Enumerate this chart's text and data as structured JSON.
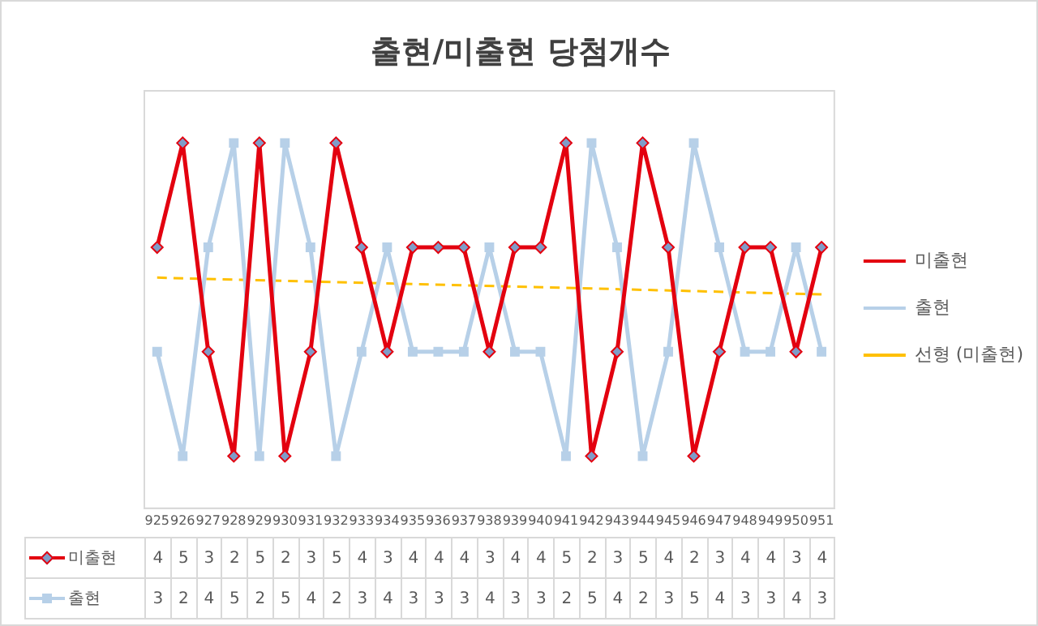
{
  "chart_data": {
    "type": "line",
    "title": "출현/미출현 당첨개수",
    "categories": [
      "925",
      "926",
      "927",
      "928",
      "929",
      "930",
      "931",
      "932",
      "933",
      "934",
      "935",
      "936",
      "937",
      "938",
      "939",
      "940",
      "941",
      "942",
      "943",
      "944",
      "945",
      "946",
      "947",
      "948",
      "949",
      "950",
      "951"
    ],
    "series": [
      {
        "name": "미출현",
        "color": "#e3000f",
        "marker": "diamond",
        "values": [
          4,
          5,
          3,
          2,
          5,
          2,
          3,
          5,
          4,
          3,
          4,
          4,
          4,
          3,
          4,
          4,
          5,
          2,
          3,
          5,
          4,
          2,
          3,
          4,
          4,
          3,
          4
        ],
        "value_labels": [
          "4",
          "5",
          "3",
          "2",
          "5",
          "2",
          "3",
          "5",
          "4",
          "3",
          "4",
          "4",
          "4",
          "3",
          "4",
          "4",
          "5",
          "2",
          "3",
          "5",
          "4",
          "2",
          "3",
          "4",
          "4",
          "3",
          "4"
        ]
      },
      {
        "name": "출현",
        "color": "#b7d0e8",
        "marker": "square",
        "values": [
          3,
          2,
          4,
          5,
          2,
          5,
          4,
          2,
          3,
          4,
          3,
          3,
          3,
          4,
          3,
          3,
          2,
          5,
          4,
          2,
          3,
          5,
          4,
          3,
          3,
          4,
          3
        ],
        "value_labels": [
          "3",
          "2",
          "4",
          "5",
          "2",
          "5",
          "4",
          "2",
          "3",
          "4",
          "3",
          "3",
          "3",
          "4",
          "3",
          "3",
          "2",
          "5",
          "4",
          "2",
          "3",
          "5",
          "4",
          "3",
          "3",
          "4",
          "3"
        ]
      },
      {
        "name": "선형 (미출현)",
        "color": "#ffc000",
        "marker": "none",
        "line_style": "dashed",
        "x": [
          "925",
          "951"
        ],
        "values": [
          3.71,
          3.55
        ]
      }
    ],
    "legend": "right",
    "grid": false,
    "tick_labels": "x"
  }
}
